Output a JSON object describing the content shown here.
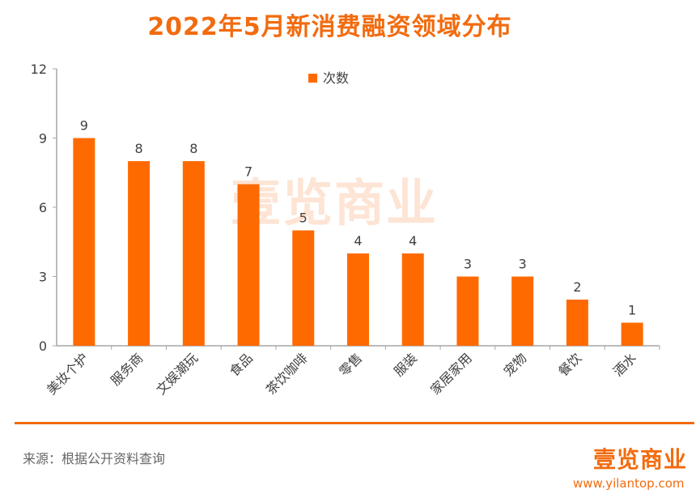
{
  "title": "2022年5月新消费融资领域分布",
  "colors": {
    "bar": "#ff6a00",
    "accent": "#f26b0f",
    "axis": "#a6a6a6",
    "text": "#404040"
  },
  "chart_data": {
    "type": "bar",
    "title": "2022年5月新消费融资领域分布",
    "categories": [
      "美妆个护",
      "服务商",
      "文娱潮玩",
      "食品",
      "茶饮咖啡",
      "零售",
      "服装",
      "家居家用",
      "宠物",
      "餐饮",
      "酒水"
    ],
    "series": [
      {
        "name": "次数",
        "values": [
          9,
          8,
          8,
          7,
          5,
          4,
          4,
          3,
          3,
          2,
          1
        ]
      }
    ],
    "ylim": [
      0,
      12
    ],
    "yticks": [
      0,
      3,
      6,
      9,
      12
    ],
    "xlabel": "",
    "ylabel": "",
    "legend": "top-center",
    "grid": false
  },
  "watermark": "壹览商业",
  "footer": {
    "source": "来源：根据公开资料查询",
    "logo": "壹览商业",
    "site": "www.yilantop.com"
  }
}
